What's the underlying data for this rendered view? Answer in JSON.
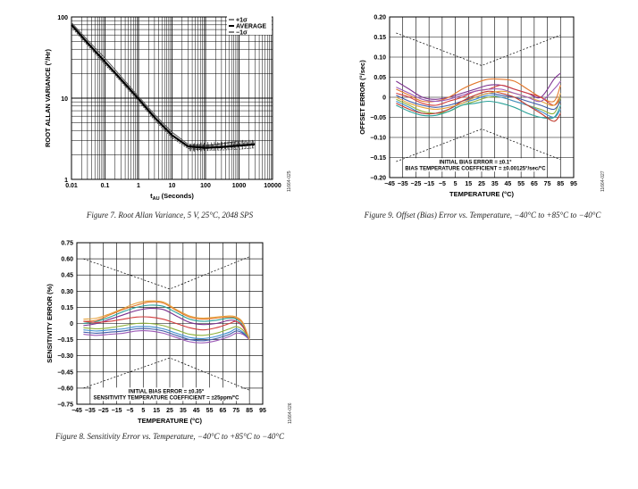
{
  "figures": [
    {
      "caption": "Figure 7. Root Allan Variance, 5 V, 25°C, 2048 SPS",
      "fig_id": "11664-025"
    },
    {
      "caption": "Figure 9. Offset (Bias) Error vs. Temperature, −40°C to +85°C to −40°C",
      "fig_id": "11664-027"
    },
    {
      "caption": "Figure 8. Sensitivity Error vs. Temperature, −40°C to +85°C to −40°C",
      "fig_id": "11664-026"
    }
  ],
  "chart_data": [
    {
      "type": "line",
      "xlabel": "tAU (Seconds)",
      "xlabel_main": "t",
      "xlabel_sub": "AU",
      "xlabel_rest": " (Seconds)",
      "ylabel": "ROOT ALLAN VARIANCE (°/Hr)",
      "xscale": "log",
      "yscale": "log",
      "xlim": [
        0.01,
        10000
      ],
      "ylim": [
        1,
        100
      ],
      "x_ticks": [
        0.01,
        0.1,
        1,
        10,
        100,
        1000,
        10000
      ],
      "x_tick_labels": [
        "0.01",
        "0.1",
        "1",
        "10",
        "100",
        "1000",
        "10000"
      ],
      "y_ticks": [
        1,
        10,
        100
      ],
      "y_tick_labels": [
        "1",
        "10",
        "100"
      ],
      "legend_position": "top-right",
      "legend": [
        "+1σ",
        "AVERAGE",
        "−1σ"
      ],
      "series": [
        {
          "name": "+1σ",
          "x": [
            0.01,
            0.03,
            0.1,
            0.3,
            1,
            3,
            10,
            30,
            100,
            300,
            1000,
            3000
          ],
          "y": [
            85,
            52,
            31,
            18.5,
            10.5,
            6.3,
            3.8,
            2.7,
            2.6,
            2.75,
            2.95,
            3.0
          ]
        },
        {
          "name": "AVERAGE",
          "x": [
            0.01,
            0.03,
            0.1,
            0.3,
            1,
            3,
            10,
            30,
            100,
            300,
            1000,
            3000
          ],
          "y": [
            80,
            48,
            28,
            17,
            9.8,
            5.8,
            3.5,
            2.55,
            2.45,
            2.5,
            2.6,
            2.7
          ]
        },
        {
          "name": "−1σ",
          "x": [
            0.01,
            0.03,
            0.1,
            0.3,
            1,
            3,
            10,
            30,
            100,
            300,
            1000,
            3000
          ],
          "y": [
            75,
            45,
            26,
            16,
            9.2,
            5.4,
            3.25,
            2.4,
            2.3,
            2.3,
            2.35,
            2.45
          ]
        }
      ]
    },
    {
      "type": "line",
      "xlabel": "TEMPERATURE (°C)",
      "ylabel": "OFFSET ERROR (°/sec)",
      "xlim": [
        -45,
        95
      ],
      "ylim": [
        -0.2,
        0.2
      ],
      "x_ticks": [
        -45,
        -35,
        -25,
        -15,
        -5,
        5,
        15,
        25,
        35,
        45,
        55,
        65,
        75,
        85,
        95
      ],
      "x_tick_labels": [
        "−45",
        "−35",
        "−25",
        "−15",
        "−5",
        "5",
        "15",
        "25",
        "35",
        "45",
        "55",
        "65",
        "75",
        "85",
        "95"
      ],
      "y_ticks": [
        -0.2,
        -0.15,
        -0.1,
        -0.05,
        0,
        0.05,
        0.1,
        0.15,
        0.2
      ],
      "y_tick_labels": [
        "−0.20",
        "−0.15",
        "−0.10",
        "−0.05",
        "0",
        "0.05",
        "0.10",
        "0.15",
        "0.20"
      ],
      "annotations": [
        "INITIAL BIAS ERROR = ±0.1°",
        "BIAS TEMPERATURE COEFFICIENT = ±0.00125°/sec/°C"
      ],
      "limit_lines": {
        "upper": {
          "x": [
            -40,
            25,
            85
          ],
          "y": [
            0.16,
            0.079,
            0.155
          ]
        },
        "lower": {
          "x": [
            -40,
            25,
            85
          ],
          "y": [
            -0.16,
            -0.079,
            -0.155
          ]
        }
      },
      "x": [
        -40,
        -30,
        -20,
        -10,
        0,
        10,
        20,
        30,
        40,
        50,
        60,
        70,
        80,
        85
      ],
      "series": [
        {
          "color": "#7b2f8e",
          "values": [
            0.04,
            0.02,
            0.0,
            -0.005,
            0.0,
            0.01,
            0.02,
            0.03,
            0.03,
            0.02,
            0.01,
            0.0,
            0.045,
            0.06
          ]
        },
        {
          "color": "#e2772a",
          "values": [
            0.02,
            0.005,
            -0.01,
            -0.01,
            0.0,
            0.02,
            0.035,
            0.045,
            0.045,
            0.04,
            0.02,
            0.0,
            -0.01,
            0.03
          ]
        },
        {
          "color": "#d23c3c",
          "values": [
            0.01,
            0.0,
            -0.015,
            -0.02,
            -0.01,
            0.0,
            0.015,
            0.02,
            0.03,
            0.02,
            0.01,
            0.0,
            -0.02,
            0.0
          ]
        },
        {
          "color": "#8fb23a",
          "values": [
            -0.005,
            -0.02,
            -0.035,
            -0.04,
            -0.035,
            -0.02,
            -0.01,
            0.0,
            0.0,
            -0.01,
            -0.02,
            -0.03,
            -0.04,
            0.0
          ]
        },
        {
          "color": "#3f8fcf",
          "values": [
            -0.01,
            -0.025,
            -0.04,
            -0.04,
            -0.03,
            -0.015,
            -0.005,
            0.005,
            0.0,
            -0.01,
            -0.02,
            -0.035,
            -0.05,
            -0.03
          ]
        },
        {
          "color": "#2aa198",
          "values": [
            -0.02,
            -0.035,
            -0.045,
            -0.045,
            -0.035,
            -0.02,
            -0.015,
            -0.01,
            -0.015,
            -0.025,
            -0.04,
            -0.05,
            -0.05,
            -0.02
          ]
        },
        {
          "color": "#3d5aa8",
          "values": [
            0.005,
            -0.01,
            -0.02,
            -0.025,
            -0.02,
            -0.01,
            0.0,
            0.01,
            0.005,
            0.0,
            -0.01,
            -0.02,
            -0.03,
            -0.01
          ]
        },
        {
          "color": "#c0392b",
          "values": [
            -0.015,
            -0.03,
            -0.04,
            -0.04,
            -0.03,
            -0.01,
            0.005,
            0.015,
            0.01,
            0.0,
            -0.02,
            -0.04,
            -0.06,
            -0.04
          ]
        },
        {
          "color": "#e6a23c",
          "values": [
            0.0,
            -0.015,
            -0.025,
            -0.03,
            -0.025,
            -0.015,
            0.0,
            0.01,
            0.015,
            0.01,
            0.0,
            -0.01,
            -0.02,
            0.01
          ]
        },
        {
          "color": "#9b59b6",
          "values": [
            0.025,
            0.01,
            -0.005,
            -0.01,
            -0.005,
            0.005,
            0.015,
            0.02,
            0.02,
            0.01,
            0.0,
            -0.01,
            0.02,
            0.04
          ]
        }
      ]
    },
    {
      "type": "line",
      "xlabel": "TEMPERATURE (°C)",
      "ylabel": "SENSITIVITY ERROR (%)",
      "xlim": [
        -45,
        95
      ],
      "ylim": [
        -0.75,
        0.75
      ],
      "x_ticks": [
        -45,
        -35,
        -25,
        -15,
        -5,
        5,
        15,
        25,
        35,
        45,
        55,
        65,
        75,
        85,
        95
      ],
      "x_tick_labels": [
        "−45",
        "−35",
        "−25",
        "−15",
        "−5",
        "5",
        "15",
        "25",
        "35",
        "45",
        "55",
        "65",
        "75",
        "85",
        "95"
      ],
      "y_ticks": [
        -0.75,
        -0.6,
        -0.45,
        -0.3,
        -0.15,
        0,
        0.15,
        0.3,
        0.45,
        0.6,
        0.75
      ],
      "y_tick_labels": [
        "−0.75",
        "−0.60",
        "−0.45",
        "−0.30",
        "−0.15",
        "0",
        "0.15",
        "0.30",
        "0.45",
        "0.60",
        "0.75"
      ],
      "annotations": [
        "INITIAL BIAS ERROR = ±0.35°",
        "SENSITIVITY TEMPERATURE COEFFICIENT = ±25ppm/°C"
      ],
      "limit_lines": {
        "upper": {
          "x": [
            -40,
            25,
            85
          ],
          "y": [
            0.6,
            0.32,
            0.62
          ]
        },
        "lower": {
          "x": [
            -40,
            25,
            85
          ],
          "y": [
            -0.6,
            -0.32,
            -0.62
          ]
        }
      },
      "x": [
        -40,
        -30,
        -20,
        -10,
        0,
        10,
        20,
        30,
        40,
        50,
        60,
        70,
        75,
        80,
        85
      ],
      "series": [
        {
          "color": "#e2772a",
          "values": [
            0.02,
            0.03,
            0.08,
            0.13,
            0.17,
            0.2,
            0.19,
            0.12,
            0.06,
            0.04,
            0.05,
            0.06,
            0.05,
            0.0,
            -0.15
          ]
        },
        {
          "color": "#2aa198",
          "values": [
            0.0,
            0.02,
            0.06,
            0.11,
            0.15,
            0.17,
            0.16,
            0.1,
            0.04,
            0.02,
            0.03,
            0.05,
            0.04,
            -0.02,
            -0.15
          ]
        },
        {
          "color": "#7b2f8e",
          "values": [
            -0.02,
            0.0,
            0.04,
            0.08,
            0.12,
            0.14,
            0.13,
            0.07,
            0.01,
            -0.01,
            0.0,
            0.03,
            0.02,
            -0.03,
            -0.15
          ]
        },
        {
          "color": "#d23c3c",
          "values": [
            0.02,
            0.01,
            0.02,
            0.04,
            0.06,
            0.06,
            0.04,
            0.0,
            -0.04,
            -0.06,
            -0.04,
            0.0,
            0.02,
            -0.03,
            -0.15
          ]
        },
        {
          "color": "#8fb23a",
          "values": [
            -0.04,
            -0.05,
            -0.04,
            -0.02,
            0.0,
            0.0,
            -0.02,
            -0.06,
            -0.1,
            -0.11,
            -0.09,
            -0.05,
            -0.03,
            -0.06,
            -0.15
          ]
        },
        {
          "color": "#3f8fcf",
          "values": [
            -0.06,
            -0.07,
            -0.06,
            -0.05,
            -0.03,
            -0.03,
            -0.05,
            -0.09,
            -0.13,
            -0.14,
            -0.12,
            -0.08,
            -0.05,
            -0.08,
            -0.15
          ]
        },
        {
          "color": "#3d5aa8",
          "values": [
            -0.08,
            -0.09,
            -0.08,
            -0.07,
            -0.05,
            -0.05,
            -0.07,
            -0.11,
            -0.15,
            -0.16,
            -0.14,
            -0.1,
            -0.07,
            -0.09,
            -0.15
          ]
        },
        {
          "color": "#9b59b6",
          "values": [
            -0.1,
            -0.11,
            -0.1,
            -0.09,
            -0.07,
            -0.07,
            -0.09,
            -0.13,
            -0.17,
            -0.18,
            -0.16,
            -0.12,
            -0.09,
            -0.1,
            -0.15
          ]
        },
        {
          "color": "#e6a23c",
          "values": [
            0.04,
            0.05,
            0.09,
            0.14,
            0.19,
            0.21,
            0.2,
            0.13,
            0.07,
            0.05,
            0.06,
            0.07,
            0.06,
            0.01,
            -0.15
          ]
        }
      ]
    }
  ]
}
